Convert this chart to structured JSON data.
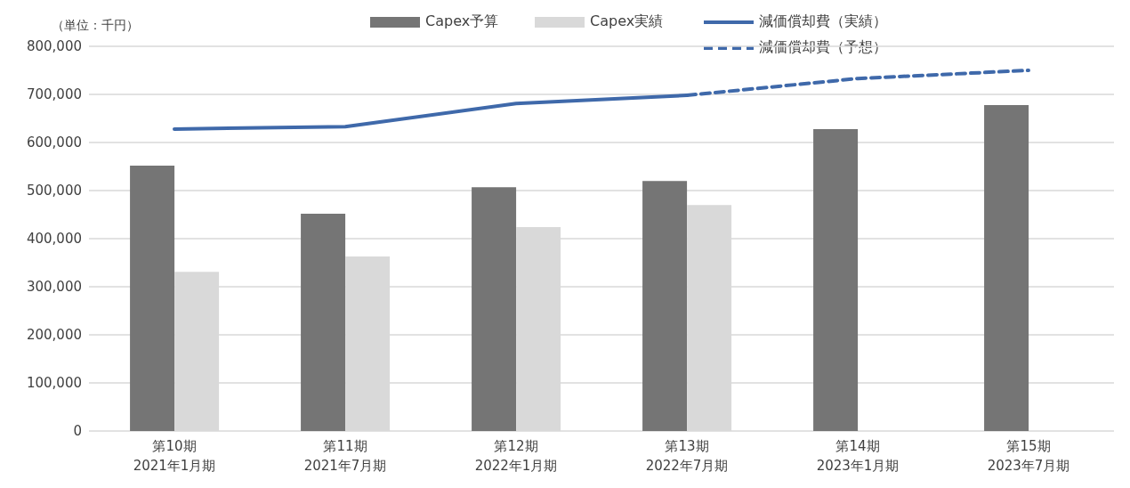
{
  "chart_data": {
    "type": "bar",
    "categories": [
      "第10期\n2021年1月期",
      "第11期\n2021年7月期",
      "第12期\n2022年1月期",
      "第13期\n2022年7月期",
      "第14期\n2023年1月期",
      "第15期\n2023年7月期"
    ],
    "series": [
      {
        "name": "Capex予算",
        "color": "#757575",
        "values": [
          552000,
          452000,
          507000,
          520000,
          628000,
          678000
        ]
      },
      {
        "name": "Capex実績",
        "color": "#d9d9d9",
        "values": [
          331000,
          363000,
          424000,
          470000,
          null,
          null
        ]
      },
      {
        "name": "減価償却費（実績）",
        "type": "line",
        "color": "#3f69aa",
        "line_style": "solid",
        "values": [
          628000,
          633000,
          681000,
          698000,
          null,
          null
        ]
      },
      {
        "name": "減価償却費（予想）",
        "type": "line",
        "color": "#3f69aa",
        "line_style": "dashed",
        "values": [
          null,
          null,
          null,
          698000,
          733000,
          750000
        ]
      }
    ],
    "ylim": [
      0,
      800000
    ],
    "yticks": [
      0,
      {
        "value": 100000,
        "label": "100,000"
      },
      {
        "value": 200000,
        "label": "200,000"
      },
      {
        "value": 300000,
        "label": "300,000"
      },
      {
        "value": 400000,
        "label": "400,000"
      },
      {
        "value": 500000,
        "label": "500,000"
      },
      {
        "value": 600000,
        "label": "600,000"
      },
      {
        "value": 700000,
        "label": "700,000"
      },
      {
        "value": 800000,
        "label": "800,000"
      }
    ],
    "grid": "y",
    "legend": "top right",
    "marker": "none",
    "annotations": [
      "（単位：千円）"
    ]
  }
}
